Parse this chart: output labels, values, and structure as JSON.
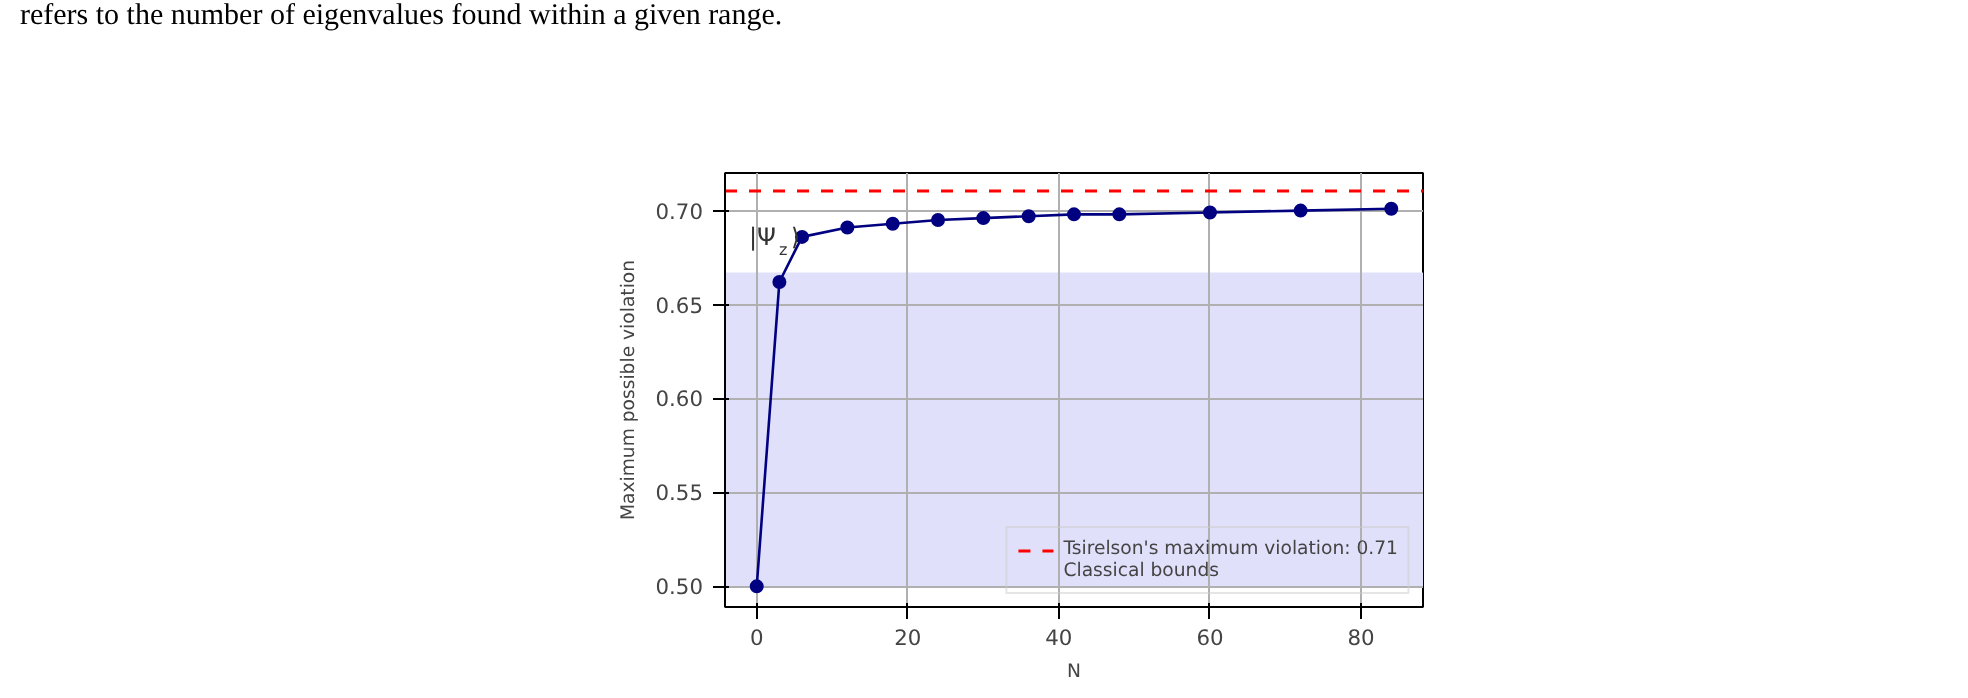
{
  "chart_data": {
    "type": "line",
    "xlabel": "N",
    "ylabel": "Maximum possible violation",
    "x": [
      0,
      3,
      6,
      12,
      18,
      24,
      30,
      36,
      42,
      48,
      60,
      72,
      84
    ],
    "series": [
      {
        "color": "#000080",
        "values": [
          0.5,
          0.662,
          0.686,
          0.691,
          0.693,
          0.695,
          0.696,
          0.697,
          0.698,
          0.698,
          0.699,
          0.7,
          0.701
        ]
      }
    ],
    "xlim": [
      -4.2,
      88.2
    ],
    "xticks": [
      0,
      20,
      40,
      60,
      80
    ],
    "ylim": [
      0.489,
      0.72
    ],
    "yticks": [
      {
        "value": 0.5,
        "label": "0.50"
      },
      {
        "value": 0.55,
        "label": "0.55"
      },
      {
        "value": 0.6,
        "label": "0.60"
      },
      {
        "value": 0.65,
        "label": "0.65"
      },
      {
        "value": 0.7,
        "label": "0.70"
      }
    ],
    "ref_lines": [
      {
        "axis": "y",
        "value": 0.71,
        "label": "Tsirelson's maximum violation: 0.71",
        "color": "#ff0000",
        "line_style": "dashed"
      }
    ],
    "bands": [
      {
        "axis": "y",
        "from": 0.5,
        "to": 0.667,
        "label": "Classical bounds",
        "color": "#e0e0fb"
      }
    ],
    "annotations": [
      "refers to the number of eigenvalues found within a given range.",
      "|Ψ$_{z}$⟩"
    ],
    "grid": true,
    "legend": "bottom right",
    "marker": "circle",
    "line_style": "solid"
  }
}
